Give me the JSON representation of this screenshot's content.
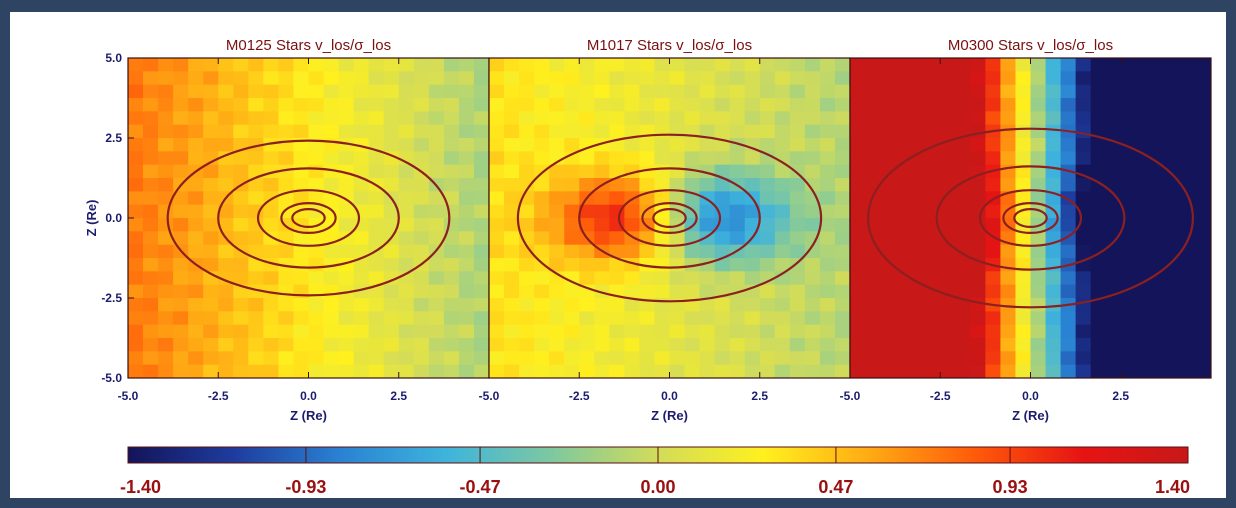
{
  "chart_data": {
    "type": "heatmap",
    "panels": [
      {
        "title": "M0125 Stars v_los/σ_los",
        "field": {
          "gradient": 0.04,
          "base": 0.3,
          "central_dipole": 0.0
        },
        "contour_levels_Re": [
          0.45,
          0.75,
          1.4,
          2.5,
          3.9
        ]
      },
      {
        "title": "M1017 Stars v_los/σ_los",
        "field": {
          "gradient": 0.02,
          "base": 0.12,
          "central_dipole": 0.85
        },
        "contour_levels_Re": [
          0.45,
          0.75,
          1.4,
          2.5,
          4.2
        ]
      },
      {
        "title": "M0300 Stars v_los/σ_los",
        "field": {
          "gradient": 0.4,
          "base": 0.05,
          "central_dipole": 0.25
        },
        "contour_levels_Re": [
          0.45,
          0.75,
          1.4,
          2.6,
          4.5
        ]
      }
    ],
    "x_axis": {
      "label": "Z (Re)",
      "range": [
        -5.0,
        5.0
      ],
      "ticks": [
        -5.0,
        -2.5,
        0.0,
        2.5
      ],
      "tick_labels": [
        "-5.0",
        "-2.5",
        "0.0",
        "2.5"
      ]
    },
    "y_axis": {
      "label": "Z (Re)",
      "range": [
        -5.0,
        5.0
      ],
      "ticks": [
        5.0,
        2.5,
        0.0,
        -2.5,
        -5.0
      ],
      "tick_labels": [
        "5.0",
        "2.5",
        "0.0",
        "-2.5",
        "-5.0"
      ]
    },
    "colorbar": {
      "range": [
        -1.4,
        1.4
      ],
      "ticks": [
        -1.4,
        -0.93,
        -0.47,
        0.0,
        0.47,
        0.93,
        1.4
      ],
      "tick_labels": [
        "-1.40",
        "-0.93",
        "-0.47",
        "0.00",
        "0.47",
        "0.93",
        "1.40"
      ],
      "colors": [
        "#14145a",
        "#1e3c9e",
        "#2a82d2",
        "#3eb4dc",
        "#7ec8a0",
        "#d2dc5a",
        "#fff01e",
        "#ffaa14",
        "#ff5a0a",
        "#e61414",
        "#c81818"
      ]
    },
    "contour_color": "#8c2020",
    "grid": false
  }
}
